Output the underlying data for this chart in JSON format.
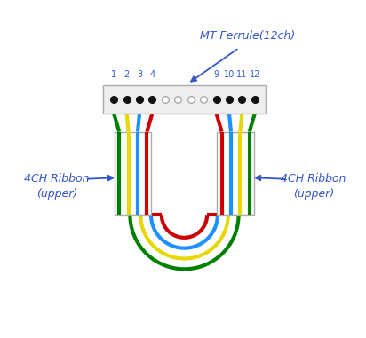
{
  "fig_width": 4.12,
  "fig_height": 3.81,
  "bg_color": "#ffffff",
  "annotation_color": "#3355cc",
  "ferrule_label": "MT Ferrule(12ch)",
  "channel_labels_left": [
    "1",
    "2",
    "3",
    "4"
  ],
  "channel_labels_right": [
    "9",
    "10",
    "11",
    "12"
  ],
  "left_ribbon_label": "4CH Ribbon\n(upper)",
  "right_ribbon_label": "4CH Ribbon\n(upper)",
  "wire_colors_left": [
    "#008000",
    "#e6d800",
    "#1e90ff",
    "#cc0000"
  ],
  "wire_colors_right": [
    "#cc0000",
    "#1e90ff",
    "#e6d800",
    "#008000"
  ],
  "loop_colors_outside_in": [
    "#008000",
    "#e6d800",
    "#1e90ff",
    "#cc0000"
  ]
}
